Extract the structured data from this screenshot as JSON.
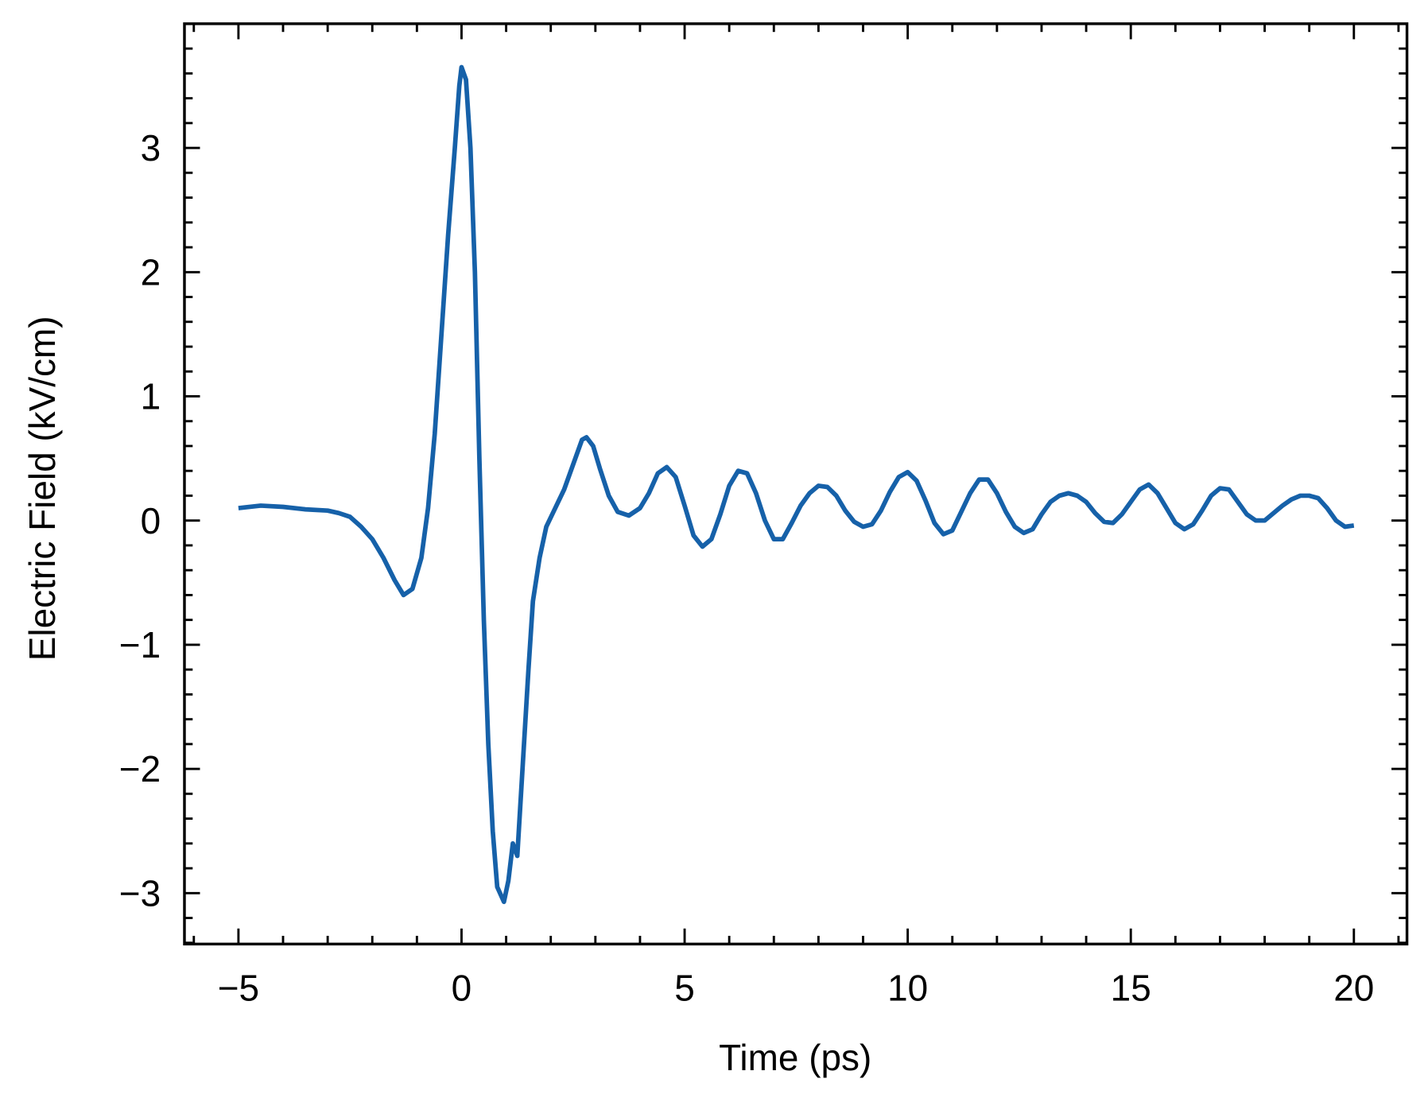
{
  "chart_data": {
    "type": "line",
    "xlabel": "Time (ps)",
    "ylabel": "Electric Field (kV/cm)",
    "x": [
      -5,
      -4.5,
      -4,
      -3.5,
      -3,
      -2.75,
      -2.5,
      -2.25,
      -2,
      -1.75,
      -1.5,
      -1.3,
      -1.1,
      -0.9,
      -0.75,
      -0.6,
      -0.45,
      -0.3,
      -0.15,
      -0.05,
      0,
      0.1,
      0.2,
      0.3,
      0.4,
      0.5,
      0.6,
      0.7,
      0.8,
      0.95,
      1.05,
      1.15,
      1.25,
      1.35,
      1.5,
      1.6,
      1.75,
      1.9,
      2.1,
      2.3,
      2.5,
      2.7,
      2.8,
      2.95,
      3.1,
      3.3,
      3.5,
      3.75,
      4.0,
      4.2,
      4.4,
      4.6,
      4.8,
      5.0,
      5.2,
      5.4,
      5.6,
      5.8,
      6.0,
      6.2,
      6.4,
      6.6,
      6.8,
      7.0,
      7.2,
      7.4,
      7.6,
      7.8,
      8.0,
      8.2,
      8.4,
      8.6,
      8.8,
      9.0,
      9.2,
      9.4,
      9.6,
      9.8,
      10.0,
      10.2,
      10.4,
      10.6,
      10.8,
      11.0,
      11.2,
      11.4,
      11.6,
      11.8,
      12.0,
      12.2,
      12.4,
      12.6,
      12.8,
      13.0,
      13.2,
      13.4,
      13.6,
      13.8,
      14.0,
      14.2,
      14.4,
      14.6,
      14.8,
      15.0,
      15.2,
      15.4,
      15.6,
      15.8,
      16.0,
      16.2,
      16.4,
      16.6,
      16.8,
      17.0,
      17.2,
      17.4,
      17.6,
      17.8,
      18.0,
      18.2,
      18.4,
      18.6,
      18.8,
      19.0,
      19.2,
      19.4,
      19.6,
      19.8,
      20.0
    ],
    "values": [
      0.1,
      0.12,
      0.11,
      0.09,
      0.08,
      0.06,
      0.03,
      -0.05,
      -0.15,
      -0.3,
      -0.48,
      -0.6,
      -0.55,
      -0.3,
      0.1,
      0.7,
      1.5,
      2.3,
      3.0,
      3.5,
      3.65,
      3.55,
      3.0,
      2.0,
      0.5,
      -0.8,
      -1.8,
      -2.5,
      -2.95,
      -3.07,
      -2.9,
      -2.6,
      -2.7,
      -2.1,
      -1.2,
      -0.65,
      -0.3,
      -0.05,
      0.1,
      0.25,
      0.45,
      0.65,
      0.67,
      0.6,
      0.42,
      0.2,
      0.07,
      0.04,
      0.1,
      0.22,
      0.38,
      0.43,
      0.35,
      0.12,
      -0.12,
      -0.21,
      -0.15,
      0.05,
      0.28,
      0.4,
      0.38,
      0.22,
      0.0,
      -0.15,
      -0.15,
      -0.02,
      0.12,
      0.22,
      0.28,
      0.27,
      0.2,
      0.08,
      -0.01,
      -0.05,
      -0.03,
      0.08,
      0.23,
      0.35,
      0.39,
      0.32,
      0.16,
      -0.02,
      -0.11,
      -0.08,
      0.07,
      0.22,
      0.33,
      0.33,
      0.22,
      0.07,
      -0.05,
      -0.1,
      -0.07,
      0.05,
      0.15,
      0.2,
      0.22,
      0.2,
      0.15,
      0.06,
      -0.01,
      -0.02,
      0.05,
      0.15,
      0.25,
      0.29,
      0.22,
      0.1,
      -0.02,
      -0.07,
      -0.03,
      0.08,
      0.2,
      0.26,
      0.25,
      0.15,
      0.05,
      0.0,
      0.0,
      0.06,
      0.12,
      0.17,
      0.2,
      0.2,
      0.18,
      0.1,
      0.0,
      -0.05,
      -0.04
    ],
    "color": "#1661a9",
    "xlim": [
      -6.21,
      21.19
    ],
    "xticks": [
      {
        "value": -5,
        "label": "−5"
      },
      0,
      5,
      10,
      15,
      20
    ],
    "ylim": [
      -3.41,
      4.0
    ],
    "yticks": [
      {
        "value": -3,
        "label": "−3"
      },
      {
        "value": -2,
        "label": "−2"
      },
      {
        "value": -1,
        "label": "−1"
      },
      0,
      1,
      2,
      3
    ]
  }
}
